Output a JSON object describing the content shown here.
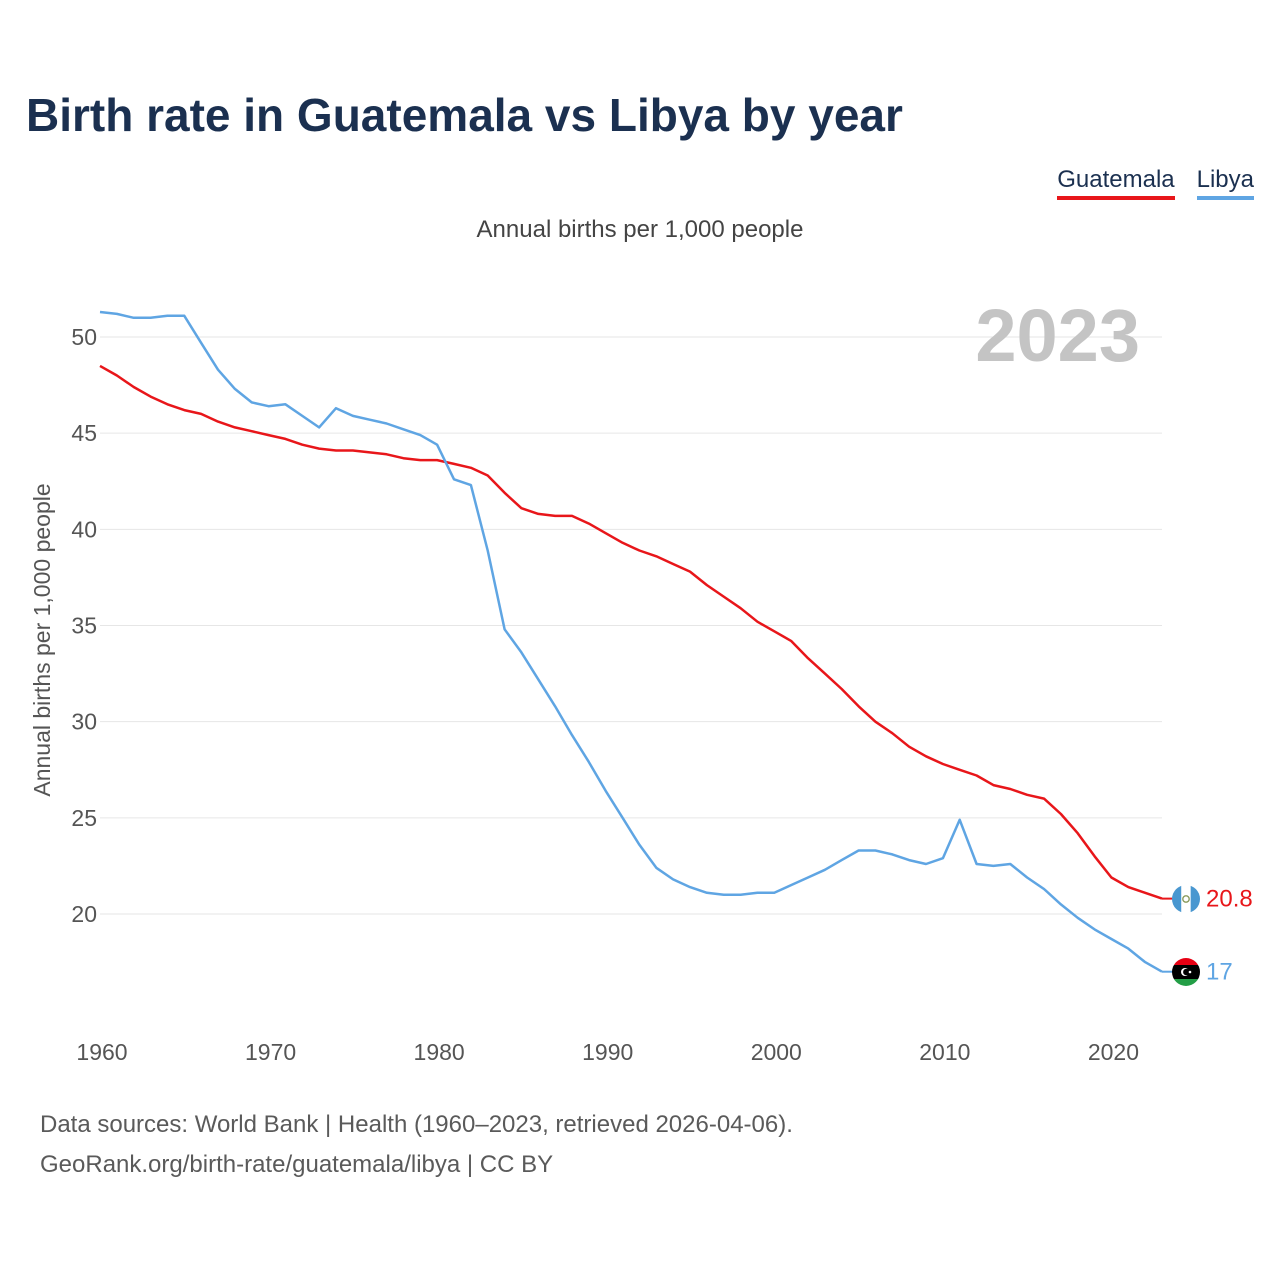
{
  "chart_data": {
    "type": "line",
    "title": "Birth rate in Guatemala vs Libya by year",
    "subtitle": "Annual births per 1,000 people",
    "ylabel": "Annual births per 1,000 people",
    "xlabel": "",
    "year_badge": "2023",
    "xlim": [
      1960,
      2023
    ],
    "ylim": [
      15,
      52
    ],
    "yticks": [
      20,
      25,
      30,
      35,
      40,
      45,
      50
    ],
    "xticks": [
      1960,
      1970,
      1980,
      1990,
      2000,
      2010,
      2020
    ],
    "grid": true,
    "legend_position": "top-right",
    "series": [
      {
        "name": "Guatemala",
        "color": "#e8161a",
        "end_label": "20.8",
        "x": [
          1960,
          1961,
          1962,
          1963,
          1964,
          1965,
          1966,
          1967,
          1968,
          1969,
          1970,
          1971,
          1972,
          1973,
          1974,
          1975,
          1976,
          1977,
          1978,
          1979,
          1980,
          1981,
          1982,
          1983,
          1984,
          1985,
          1986,
          1987,
          1988,
          1989,
          1990,
          1991,
          1992,
          1993,
          1994,
          1995,
          1996,
          1997,
          1998,
          1999,
          2000,
          2001,
          2002,
          2003,
          2004,
          2005,
          2006,
          2007,
          2008,
          2009,
          2010,
          2011,
          2012,
          2013,
          2014,
          2015,
          2016,
          2017,
          2018,
          2019,
          2020,
          2021,
          2022,
          2023
        ],
        "values": [
          48.5,
          48.0,
          47.4,
          46.9,
          46.5,
          46.2,
          46.0,
          45.6,
          45.3,
          45.1,
          44.9,
          44.7,
          44.4,
          44.2,
          44.1,
          44.1,
          44.0,
          43.9,
          43.7,
          43.6,
          43.6,
          43.4,
          43.2,
          42.8,
          41.9,
          41.1,
          40.8,
          40.7,
          40.7,
          40.3,
          39.8,
          39.3,
          38.9,
          38.6,
          38.2,
          37.8,
          37.1,
          36.5,
          35.9,
          35.2,
          34.7,
          34.2,
          33.3,
          32.5,
          31.7,
          30.8,
          30.0,
          29.4,
          28.7,
          28.2,
          27.8,
          27.5,
          27.2,
          26.7,
          26.5,
          26.2,
          26.0,
          25.2,
          24.2,
          23.0,
          21.9,
          21.4,
          21.1,
          20.8
        ]
      },
      {
        "name": "Libya",
        "color": "#5fa5e3",
        "end_label": "17",
        "x": [
          1960,
          1961,
          1962,
          1963,
          1964,
          1965,
          1966,
          1967,
          1968,
          1969,
          1970,
          1971,
          1972,
          1973,
          1974,
          1975,
          1976,
          1977,
          1978,
          1979,
          1980,
          1981,
          1982,
          1983,
          1984,
          1985,
          1986,
          1987,
          1988,
          1989,
          1990,
          1991,
          1992,
          1993,
          1994,
          1995,
          1996,
          1997,
          1998,
          1999,
          2000,
          2001,
          2002,
          2003,
          2004,
          2005,
          2006,
          2007,
          2008,
          2009,
          2010,
          2011,
          2012,
          2013,
          2014,
          2015,
          2016,
          2017,
          2018,
          2019,
          2020,
          2021,
          2022,
          2023
        ],
        "values": [
          51.3,
          51.2,
          51.0,
          51.0,
          51.1,
          51.1,
          49.7,
          48.3,
          47.3,
          46.6,
          46.4,
          46.5,
          45.9,
          45.3,
          46.3,
          45.9,
          45.7,
          45.5,
          45.2,
          44.9,
          44.4,
          42.6,
          42.3,
          38.9,
          34.8,
          33.6,
          32.2,
          30.8,
          29.3,
          27.9,
          26.4,
          25.0,
          23.6,
          22.4,
          21.8,
          21.4,
          21.1,
          21.0,
          21.0,
          21.1,
          21.1,
          21.5,
          21.9,
          22.3,
          22.8,
          23.3,
          23.3,
          23.1,
          22.8,
          22.6,
          22.9,
          24.9,
          22.6,
          22.5,
          22.6,
          21.9,
          21.3,
          20.5,
          19.8,
          19.2,
          18.7,
          18.2,
          17.5,
          17.0
        ]
      }
    ]
  },
  "legend": {
    "guatemala": "Guatemala",
    "libya": "Libya"
  },
  "footer": {
    "line1": "Data sources: World Bank | Health (1960–2023, retrieved 2026-04-06).",
    "line2": "GeoRank.org/birth-rate/guatemala/libya | CC BY"
  }
}
